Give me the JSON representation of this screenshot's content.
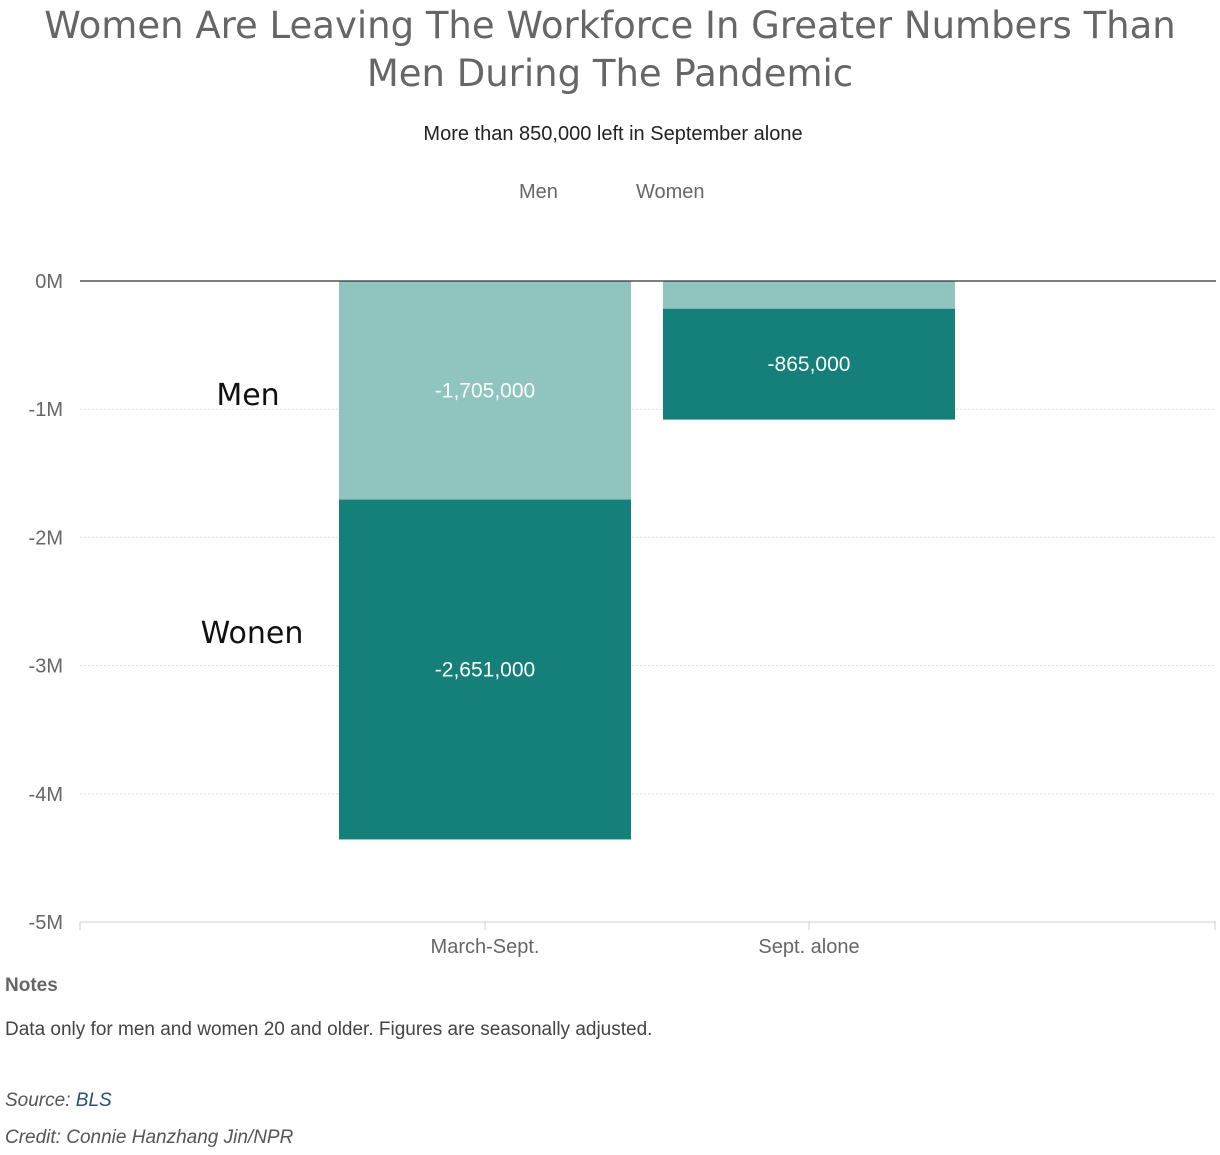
{
  "chart_data": {
    "type": "bar",
    "stacked": true,
    "title": "Women Are Leaving The Workforce In Greater Numbers Than Men During The Pandemic",
    "subtitle": "More than 850,000 left in September alone",
    "categories": [
      "March-Sept.",
      "Sept. alone"
    ],
    "series": [
      {
        "name": "Men",
        "color": "#8fc4bf",
        "values": [
          -1705000,
          -216000
        ],
        "labels": [
          "-1,705,000",
          ""
        ]
      },
      {
        "name": "Women",
        "color": "#148079",
        "values": [
          -2651000,
          -865000
        ],
        "labels": [
          "-2,651,000",
          "-865,000"
        ]
      }
    ],
    "ylim": [
      -5000000,
      0
    ],
    "yticks": [
      {
        "value": 0,
        "label": "0M"
      },
      {
        "value": -1000000,
        "label": "-1M"
      },
      {
        "value": -2000000,
        "label": "-2M"
      },
      {
        "value": -3000000,
        "label": "-3M"
      },
      {
        "value": -4000000,
        "label": "-4M"
      },
      {
        "value": -5000000,
        "label": "-5M"
      }
    ],
    "annotations": [
      {
        "text": "Men"
      },
      {
        "text": "Wonen"
      }
    ],
    "grid": true,
    "legend_position": "top-center"
  },
  "legend": {
    "men": "Men",
    "women": "Women"
  },
  "notes": {
    "title": "Notes",
    "text": "Data only for men and women 20 and older. Figures are seasonally adjusted."
  },
  "source": {
    "prefix": "Source: ",
    "link": "BLS"
  },
  "credit": "Credit: Connie Hanzhang Jin/NPR"
}
